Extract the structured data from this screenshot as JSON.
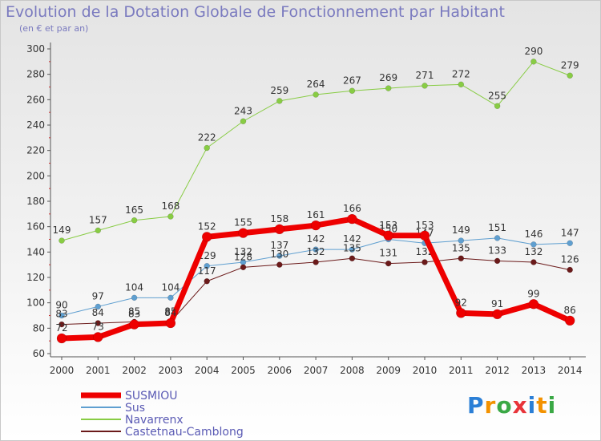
{
  "title": "Evolution de la Dotation Globale de Fonctionnement par Habitant",
  "subtitle": "(en € et par an)",
  "logo": {
    "text": "Proxiti",
    "letter_colors": [
      "#2b7fd6",
      "#f39200",
      "#3aa845",
      "#e8343a",
      "#2b7fd6",
      "#f39200",
      "#3aa845"
    ]
  },
  "chart_data": {
    "type": "line",
    "title": "Evolution de la Dotation Globale de Fonctionnement par Habitant",
    "subtitle": "(en € et par an)",
    "xlabel": "",
    "ylabel": "",
    "x": [
      "2000",
      "2001",
      "2002",
      "2003",
      "2004",
      "2005",
      "2006",
      "2007",
      "2008",
      "2009",
      "2010",
      "2011",
      "2012",
      "2013",
      "2014"
    ],
    "ylim": [
      60,
      300
    ],
    "yticks": [
      60,
      80,
      100,
      120,
      140,
      160,
      180,
      200,
      220,
      240,
      260,
      280,
      300
    ],
    "grid": false,
    "legend_position": "bottom-left",
    "series": [
      {
        "name": "Navarrenx",
        "color": "#88cc44",
        "width": 1,
        "values": [
          149,
          157,
          165,
          168,
          222,
          243,
          259,
          264,
          267,
          269,
          271,
          272,
          255,
          290,
          279
        ]
      },
      {
        "name": "Sus",
        "color": "#5f9fd0",
        "width": 1,
        "values": [
          90,
          97,
          104,
          104,
          129,
          132,
          137,
          142,
          142,
          150,
          147,
          149,
          151,
          146,
          147
        ]
      },
      {
        "name": "Castetnau-Camblong",
        "color": "#6b1a1a",
        "width": 1,
        "values": [
          83,
          84,
          85,
          85,
          117,
          128,
          130,
          132,
          135,
          131,
          132,
          135,
          133,
          132,
          126
        ]
      },
      {
        "name": "SUSMIOU",
        "color": "#ee0000",
        "width": 7,
        "values": [
          72,
          73,
          83,
          84,
          152,
          155,
          158,
          161,
          166,
          153,
          153,
          92,
          91,
          99,
          86
        ]
      }
    ],
    "legend_order": [
      "SUSMIOU",
      "Sus",
      "Navarrenx",
      "Castetnau-Camblong"
    ]
  }
}
